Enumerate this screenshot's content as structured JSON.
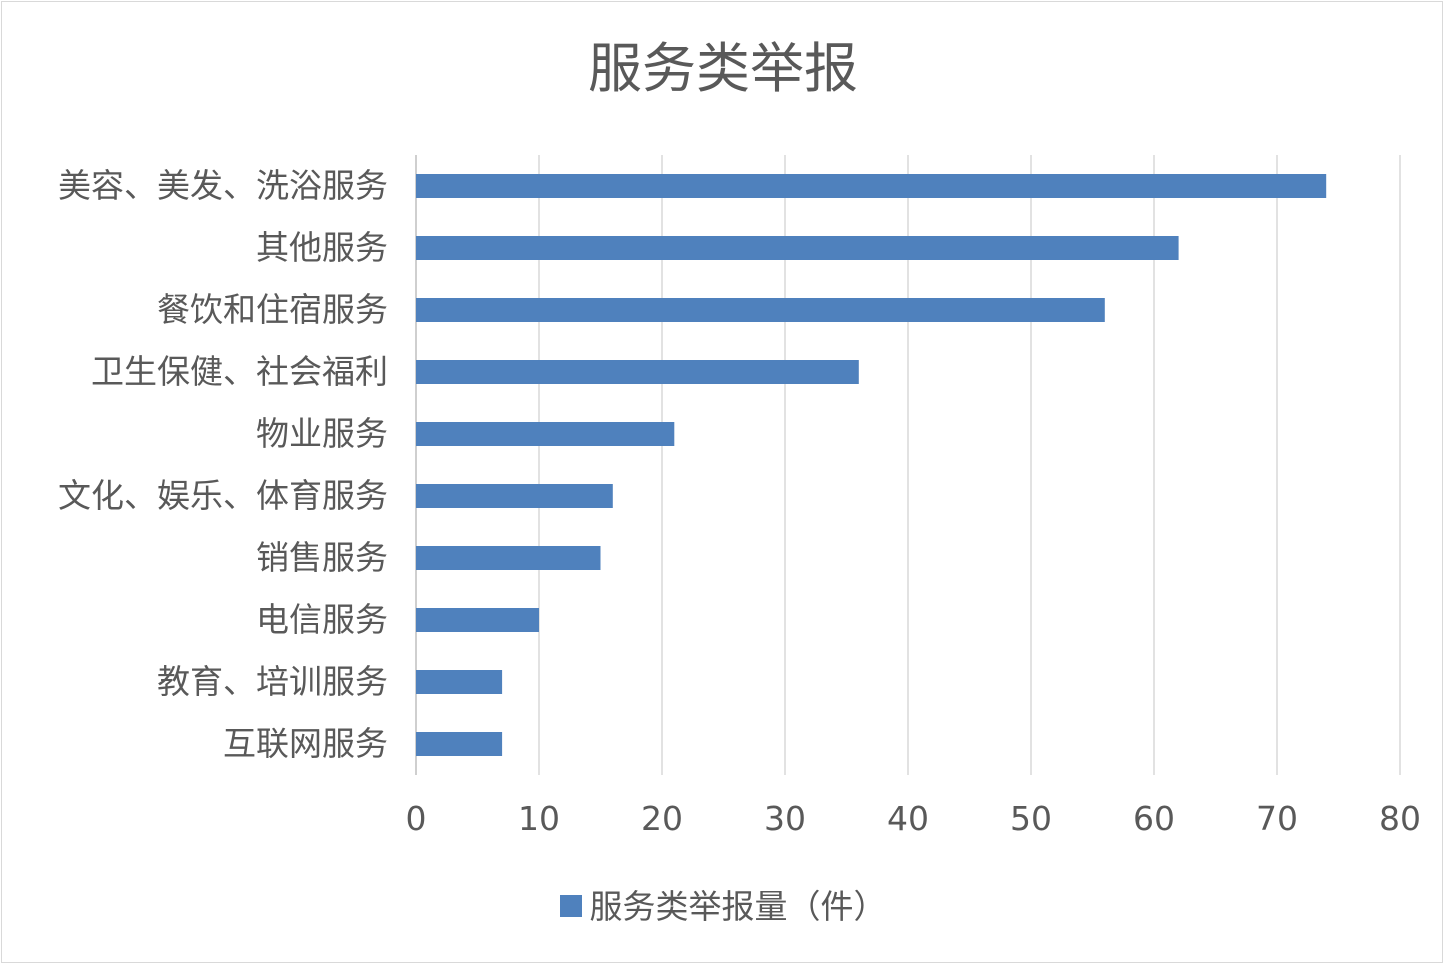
{
  "chart_data": {
    "type": "bar",
    "orientation": "horizontal",
    "title": "服务类举报",
    "categories": [
      "美容、美发、洗浴服务",
      "其他服务",
      "餐饮和住宿服务",
      "卫生保健、社会福利",
      "物业服务",
      "文化、娱乐、体育服务",
      "销售服务",
      "电信服务",
      "教育、培训服务",
      "互联网服务"
    ],
    "series": [
      {
        "name": "服务类举报量（件）",
        "values": [
          74,
          62,
          56,
          36,
          21,
          16,
          15,
          10,
          7,
          7
        ]
      }
    ],
    "xlim": [
      0,
      80
    ],
    "xticks": [
      "0",
      "10",
      "20",
      "30",
      "40",
      "50",
      "60",
      "70",
      "80"
    ],
    "grid": "vertical",
    "legend": "bottom",
    "bar_color": "#4f81bd"
  }
}
